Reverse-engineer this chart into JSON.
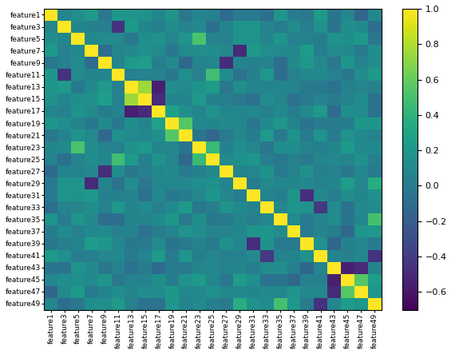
{
  "features": [
    "feature1",
    "feature3",
    "feature5",
    "feature7",
    "feature9",
    "feature11",
    "feature13",
    "feature15",
    "feature17",
    "feature19",
    "feature21",
    "feature23",
    "feature25",
    "feature27",
    "feature29",
    "feature31",
    "feature33",
    "feature35",
    "feature37",
    "feature39",
    "feature41",
    "feature43",
    "feature45",
    "feature47",
    "feature49"
  ],
  "n": 25,
  "cmap": "viridis",
  "vmin": -0.7,
  "vmax": 1.0,
  "figsize": [
    5.9,
    4.43
  ],
  "dpi": 100,
  "random_seed": 42,
  "colorbar_ticks": [
    1.0,
    0.8,
    0.6,
    0.4,
    0.2,
    0.0,
    -0.2,
    -0.4,
    -0.6
  ]
}
